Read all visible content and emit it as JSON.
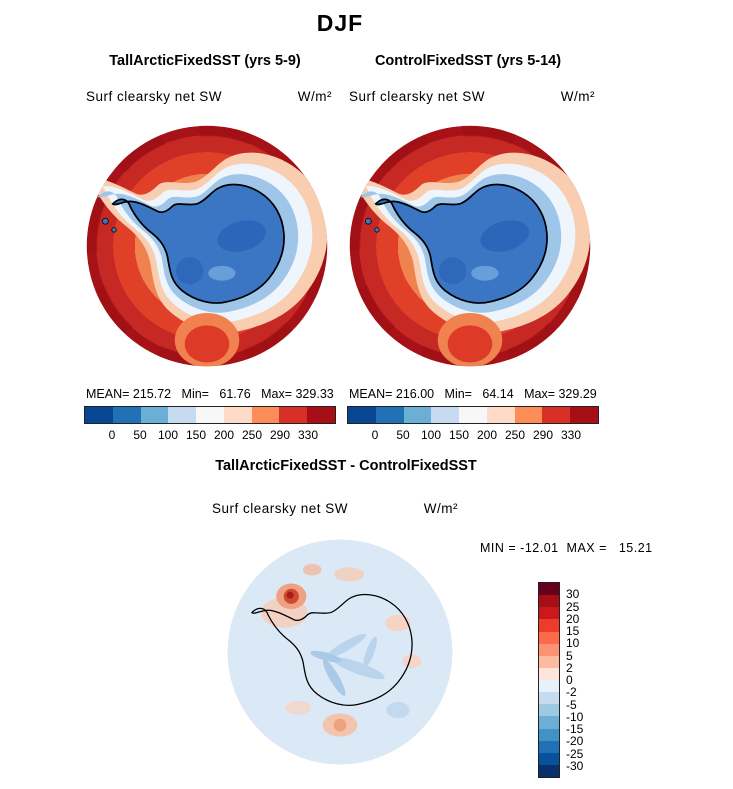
{
  "figure": {
    "season": "DJF",
    "panels": [
      {
        "title": "TallArcticFixedSST (yrs 5-9)",
        "field": "Surf clearsky net SW",
        "units": "W/m²",
        "stats_line": "MEAN= 215.72   Min=   61.76   Max= 329.33",
        "colorbar": {
          "ticks": [
            "0",
            "50",
            "100",
            "150",
            "200",
            "250",
            "290",
            "330"
          ],
          "colors": [
            "#084594",
            "#2171b5",
            "#6baed6",
            "#c6dbef",
            "#f7f7f7",
            "#fddbc7",
            "#fc8d59",
            "#d73027",
            "#a50f15"
          ]
        }
      },
      {
        "title": "ControlFixedSST (yrs 5-14)",
        "field": "Surf clearsky net SW",
        "units": "W/m²",
        "stats_line": "MEAN= 216.00   Min=   64.14   Max= 329.29",
        "colorbar": {
          "ticks": [
            "0",
            "50",
            "100",
            "150",
            "200",
            "250",
            "290",
            "330"
          ],
          "colors": [
            "#084594",
            "#2171b5",
            "#6baed6",
            "#c6dbef",
            "#f7f7f7",
            "#fddbc7",
            "#fc8d59",
            "#d73027",
            "#a50f15"
          ]
        }
      }
    ],
    "diff_panel": {
      "title": "TallArcticFixedSST - ControlFixedSST",
      "field": "Surf clearsky net SW",
      "units": "W/m²",
      "minmax_line": "MIN = -12.01  MAX =   15.21",
      "colorbar": {
        "labels": [
          "30",
          "25",
          "20",
          "15",
          "10",
          "5",
          "2",
          "0",
          "-2",
          "-5",
          "-10",
          "-15",
          "-20",
          "-25",
          "-30"
        ],
        "colors": [
          "#67001f",
          "#a50f15",
          "#cb181d",
          "#ef3b2c",
          "#fb6a4a",
          "#fc9272",
          "#fcbba1",
          "#fee5d9",
          "#e8f1fa",
          "#c6dbef",
          "#9ecae1",
          "#6baed6",
          "#4292c6",
          "#2171b5",
          "#08519c",
          "#08306b"
        ]
      }
    }
  },
  "chart_data": [
    {
      "type": "heatmap",
      "subtype": "south-polar-stereographic-filled-contour-map",
      "season": "DJF",
      "title": "TallArcticFixedSST (yrs 5-9)",
      "field": "Surf clearsky net SW",
      "units": "W/m²",
      "stats": {
        "mean": 215.72,
        "min": 61.76,
        "max": 329.33
      },
      "contour_levels": [
        0,
        50,
        100,
        150,
        200,
        250,
        290,
        330
      ],
      "palette": [
        "#084594",
        "#2171b5",
        "#6baed6",
        "#c6dbef",
        "#f7f7f7",
        "#fddbc7",
        "#fc8d59",
        "#d73027",
        "#a50f15"
      ],
      "legend_position": "bottom",
      "notes": "High values (red, >290 W/m²) over Southern Ocean ring; low values (blue, <100 W/m²) over Antarctic continent"
    },
    {
      "type": "heatmap",
      "subtype": "south-polar-stereographic-filled-contour-map",
      "season": "DJF",
      "title": "ControlFixedSST (yrs 5-14)",
      "field": "Surf clearsky net SW",
      "units": "W/m²",
      "stats": {
        "mean": 216.0,
        "min": 64.14,
        "max": 329.29
      },
      "contour_levels": [
        0,
        50,
        100,
        150,
        200,
        250,
        290,
        330
      ],
      "palette": [
        "#084594",
        "#2171b5",
        "#6baed6",
        "#c6dbef",
        "#f7f7f7",
        "#fddbc7",
        "#fc8d59",
        "#d73027",
        "#a50f15"
      ],
      "legend_position": "bottom",
      "notes": "Nearly identical pattern to TallArcticFixedSST panel"
    },
    {
      "type": "heatmap",
      "subtype": "south-polar-stereographic-filled-contour-map",
      "season": "DJF",
      "title": "TallArcticFixedSST - ControlFixedSST",
      "field": "Surf clearsky net SW",
      "units": "W/m²",
      "stats": {
        "min": -12.01,
        "max": 15.21
      },
      "contour_levels": [
        -30,
        -25,
        -20,
        -15,
        -10,
        -5,
        -2,
        0,
        2,
        5,
        10,
        15,
        20,
        25,
        30
      ],
      "palette_top_to_bottom": [
        "#67001f",
        "#a50f15",
        "#cb181d",
        "#ef3b2c",
        "#fb6a4a",
        "#fc9272",
        "#fcbba1",
        "#fee5d9",
        "#e8f1fa",
        "#c6dbef",
        "#9ecae1",
        "#6baed6",
        "#4292c6",
        "#2171b5",
        "#08519c",
        "#08306b"
      ],
      "legend_position": "right",
      "notes": "Mostly near-zero pale-blue differences; positive (red) anomaly spot near Antarctic Peninsula"
    }
  ]
}
